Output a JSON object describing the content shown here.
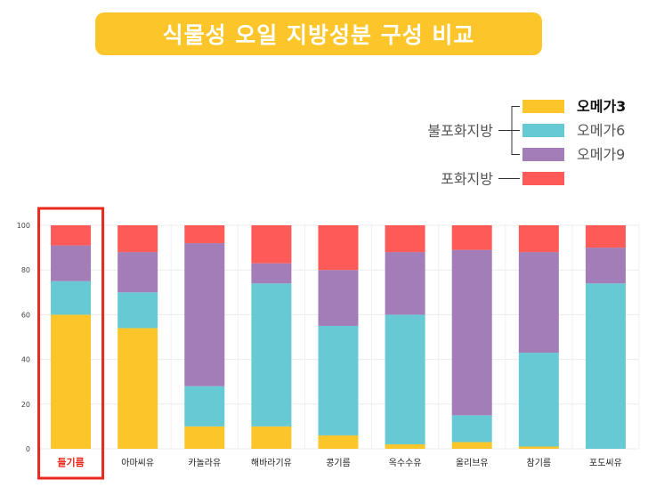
{
  "title": "식물성 오일 지방성분 구성 비교",
  "legend": {
    "group_unsaturated": "불포화지방",
    "group_saturated": "포화지방",
    "items": [
      {
        "name": "오메가3",
        "color": "#fcc62a",
        "bold": true
      },
      {
        "name": "오메가6",
        "color": "#67c9d3",
        "bold": false
      },
      {
        "name": "오메가9",
        "color": "#a27db8",
        "bold": false
      },
      {
        "name": "",
        "color": "#fe5a57",
        "bold": false
      }
    ]
  },
  "colors": {
    "highlight_box": "#e8291b",
    "highlight_label": "#e8291b"
  },
  "chart_data": {
    "type": "bar",
    "stacked": true,
    "categories": [
      "들기름",
      "아마씨유",
      "카놀라유",
      "해바라기유",
      "콩기름",
      "옥수수유",
      "올리브유",
      "참기름",
      "포도씨유"
    ],
    "highlighted_category": "들기름",
    "series": [
      {
        "name": "오메가3",
        "values": [
          60,
          54,
          10,
          10,
          6,
          2,
          3,
          1,
          0
        ]
      },
      {
        "name": "오메가6",
        "values": [
          15,
          16,
          18,
          64,
          49,
          58,
          12,
          42,
          74
        ]
      },
      {
        "name": "오메가9",
        "values": [
          16,
          18,
          64,
          9,
          25,
          28,
          74,
          45,
          16
        ]
      },
      {
        "name": "포화지방",
        "values": [
          9,
          12,
          8,
          17,
          20,
          12,
          11,
          12,
          10
        ]
      }
    ],
    "ylim": [
      0,
      100
    ],
    "yticks": [
      0,
      20,
      40,
      60,
      80,
      100
    ],
    "grid": true,
    "legend_position": "top-right"
  }
}
